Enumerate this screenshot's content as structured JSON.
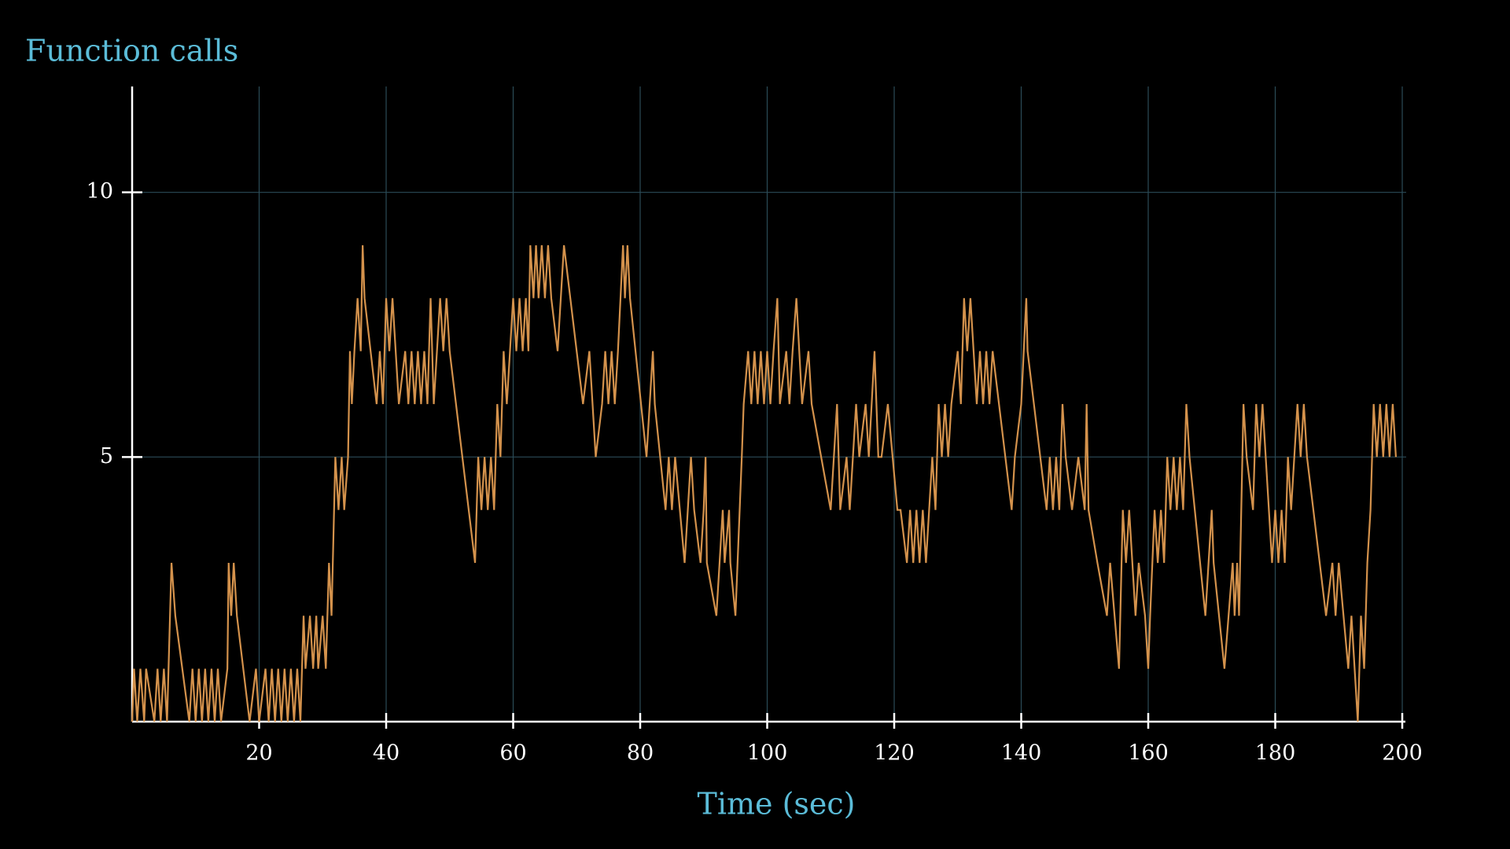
{
  "chart_data": {
    "type": "line",
    "ylabel": "Function calls",
    "xlabel": "Time (sec)",
    "color": "#d4924c",
    "background": "#000000",
    "grid": true,
    "xlim": [
      0,
      200
    ],
    "ylim": [
      0,
      12
    ],
    "xticks": [
      20,
      40,
      60,
      80,
      100,
      120,
      140,
      160,
      180,
      200
    ],
    "yticks": [
      5,
      10
    ],
    "x": [
      0,
      0.3,
      0.8,
      1.3,
      1.9,
      2.2,
      3.5,
      4,
      4.5,
      5,
      5.5,
      6.2,
      6.8,
      9,
      9.5,
      10,
      10.5,
      11,
      11.5,
      12,
      12.5,
      13,
      13.5,
      14,
      15,
      15.2,
      15.6,
      16,
      16.5,
      18.5,
      19.5,
      20,
      21,
      21.5,
      22,
      22.5,
      23,
      23.5,
      24,
      24.5,
      25,
      25.5,
      26,
      26.5,
      27,
      27.3,
      28,
      28.5,
      29,
      29.3,
      30,
      30.5,
      31,
      31.4,
      32,
      32.5,
      33,
      33.4,
      34,
      34.3,
      34.6,
      35,
      35.5,
      36,
      36.3,
      36.6,
      38.5,
      39,
      39.5,
      40,
      40.5,
      41,
      41.5,
      42,
      43,
      43.5,
      44,
      44.5,
      45,
      45.5,
      46,
      46.5,
      47,
      47.5,
      48.5,
      49,
      49.5,
      50,
      54,
      54.5,
      55,
      55.5,
      56,
      56.5,
      57,
      57.5,
      58,
      58.5,
      59,
      60,
      60.5,
      61,
      61.5,
      62,
      62.4,
      62.7,
      63.2,
      63.6,
      64,
      64.5,
      65,
      65.5,
      66,
      67,
      68,
      69,
      71,
      72,
      73,
      74,
      74.5,
      75,
      75.5,
      76,
      76.5,
      77.3,
      77.6,
      78,
      78.4,
      81,
      81.5,
      82,
      82.3,
      84,
      84.5,
      85,
      85.5,
      87,
      88,
      88.5,
      89.5,
      90,
      90.3,
      90.5,
      92,
      93,
      93.3,
      94,
      94.2,
      95,
      96,
      96.3,
      97,
      97.5,
      98,
      98.5,
      99,
      99.5,
      100,
      100.5,
      101,
      101.6,
      102,
      103,
      103.5,
      104,
      104.6,
      105.5,
      106.5,
      107,
      110,
      111,
      111.5,
      112.5,
      113,
      114,
      114.5,
      115.5,
      116,
      116.9,
      117.5,
      118,
      119,
      120.5,
      121,
      122,
      122.5,
      123,
      123.5,
      124,
      124.5,
      125,
      125.5,
      126,
      126.5,
      127,
      127.5,
      128,
      128.5,
      129,
      130,
      130.5,
      131,
      131.5,
      132,
      132.5,
      133,
      133.5,
      134,
      134.5,
      135,
      135.5,
      138.5,
      139,
      140,
      140.8,
      141,
      144,
      144.5,
      145,
      145.5,
      146,
      146.5,
      147,
      148,
      149,
      150,
      150.3,
      150.6,
      152,
      153.5,
      154,
      155.4,
      156,
      156.5,
      157,
      158,
      158.5,
      159.5,
      160,
      160.3,
      161,
      161.5,
      162,
      162.5,
      163,
      163.5,
      164,
      164.5,
      165,
      165.5,
      166,
      166.5,
      169,
      170,
      170.3,
      172,
      173.3,
      173.6,
      174,
      174.3,
      175,
      175.5,
      176.5,
      177,
      177.5,
      178,
      179.5,
      180,
      180.5,
      181,
      181.5,
      182,
      182.5,
      183.5,
      184,
      184.5,
      185,
      188,
      189,
      189.5,
      190,
      191.5,
      192,
      193,
      193.5,
      194,
      194.5,
      195,
      195.5,
      196,
      196.5,
      197,
      197.5,
      198,
      198.5,
      199
    ],
    "values": [
      0,
      1,
      0,
      1,
      0,
      1,
      0,
      1,
      0,
      1,
      0,
      3,
      2,
      0,
      1,
      0,
      1,
      0,
      1,
      0,
      1,
      0,
      1,
      0,
      1,
      3,
      2,
      3,
      2,
      0,
      1,
      0,
      1,
      0,
      1,
      0,
      1,
      0,
      1,
      0,
      1,
      0,
      1,
      0,
      2,
      1,
      2,
      1,
      2,
      1,
      2,
      1,
      3,
      2,
      5,
      4,
      5,
      4,
      5,
      7,
      6,
      7,
      8,
      7,
      9,
      8,
      6,
      7,
      6,
      8,
      7,
      8,
      7,
      6,
      7,
      6,
      7,
      6,
      7,
      6,
      7,
      6,
      8,
      6,
      8,
      7,
      8,
      7,
      3,
      5,
      4,
      5,
      4,
      5,
      4,
      6,
      5,
      7,
      6,
      8,
      7,
      8,
      7,
      8,
      7,
      9,
      8,
      9,
      8,
      9,
      8,
      9,
      8,
      7,
      9,
      8,
      6,
      7,
      5,
      6,
      7,
      6,
      7,
      6,
      7,
      9,
      8,
      9,
      8,
      5,
      6,
      7,
      6,
      4,
      5,
      4,
      5,
      3,
      5,
      4,
      3,
      4,
      5,
      3,
      2,
      4,
      3,
      4,
      3,
      2,
      5,
      6,
      7,
      6,
      7,
      6,
      7,
      6,
      7,
      6,
      7,
      8,
      6,
      7,
      6,
      7,
      8,
      6,
      7,
      6,
      4,
      6,
      4,
      5,
      4,
      6,
      5,
      6,
      5,
      7,
      5,
      5,
      6,
      4,
      4,
      3,
      4,
      3,
      4,
      3,
      4,
      3,
      4,
      5,
      4,
      6,
      5,
      6,
      5,
      6,
      7,
      6,
      8,
      7,
      8,
      7,
      6,
      7,
      6,
      7,
      6,
      7,
      4,
      5,
      6,
      8,
      7,
      4,
      5,
      4,
      5,
      4,
      6,
      5,
      4,
      5,
      4,
      6,
      4,
      3,
      2,
      3,
      1,
      4,
      3,
      4,
      2,
      3,
      2,
      1,
      2,
      4,
      3,
      4,
      3,
      5,
      4,
      5,
      4,
      5,
      4,
      6,
      5,
      2,
      4,
      3,
      1,
      3,
      2,
      3,
      2,
      6,
      5,
      4,
      6,
      5,
      6,
      3,
      4,
      3,
      4,
      3,
      5,
      4,
      6,
      5,
      6,
      5,
      2,
      3,
      2,
      3,
      1,
      2,
      0,
      2,
      1,
      3,
      4,
      6,
      5,
      6,
      5,
      6,
      5,
      6,
      5
    ]
  }
}
